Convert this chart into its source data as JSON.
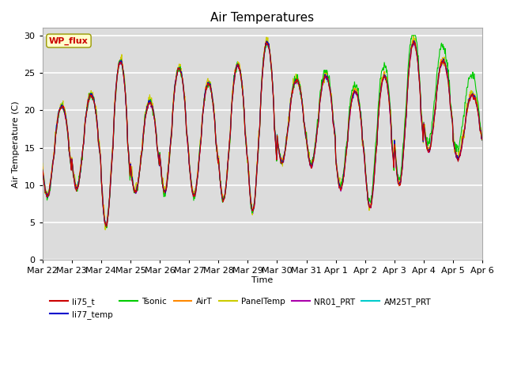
{
  "title": "Air Temperatures",
  "ylabel": "Air Temperature (C)",
  "xlabel": "Time",
  "ylim": [
    0,
    31
  ],
  "yticks": [
    0,
    5,
    10,
    15,
    20,
    25,
    30
  ],
  "background_color": "#dcdcdc",
  "figure_color": "#ffffff",
  "wp_flux_color": "#cc0000",
  "wp_flux_bg": "#ffffcc",
  "wp_flux_edge": "#999900",
  "series_colors": {
    "li75_t": "#cc0000",
    "li77_temp": "#0000cc",
    "Tsonic": "#00cc00",
    "AirT": "#ff8800",
    "PanelTemp": "#cccc00",
    "NR01_PRT": "#aa00aa",
    "AM25T_PRT": "#00cccc"
  },
  "date_labels": [
    "Mar 22",
    "Mar 23",
    "Mar 24",
    "Mar 25",
    "Mar 26",
    "Mar 27",
    "Mar 28",
    "Mar 29",
    "Mar 30",
    "Mar 31",
    "Apr 1",
    "Apr 2",
    "Apr 3",
    "Apr 4",
    "Apr 5",
    "Apr 6"
  ],
  "n_points": 960
}
